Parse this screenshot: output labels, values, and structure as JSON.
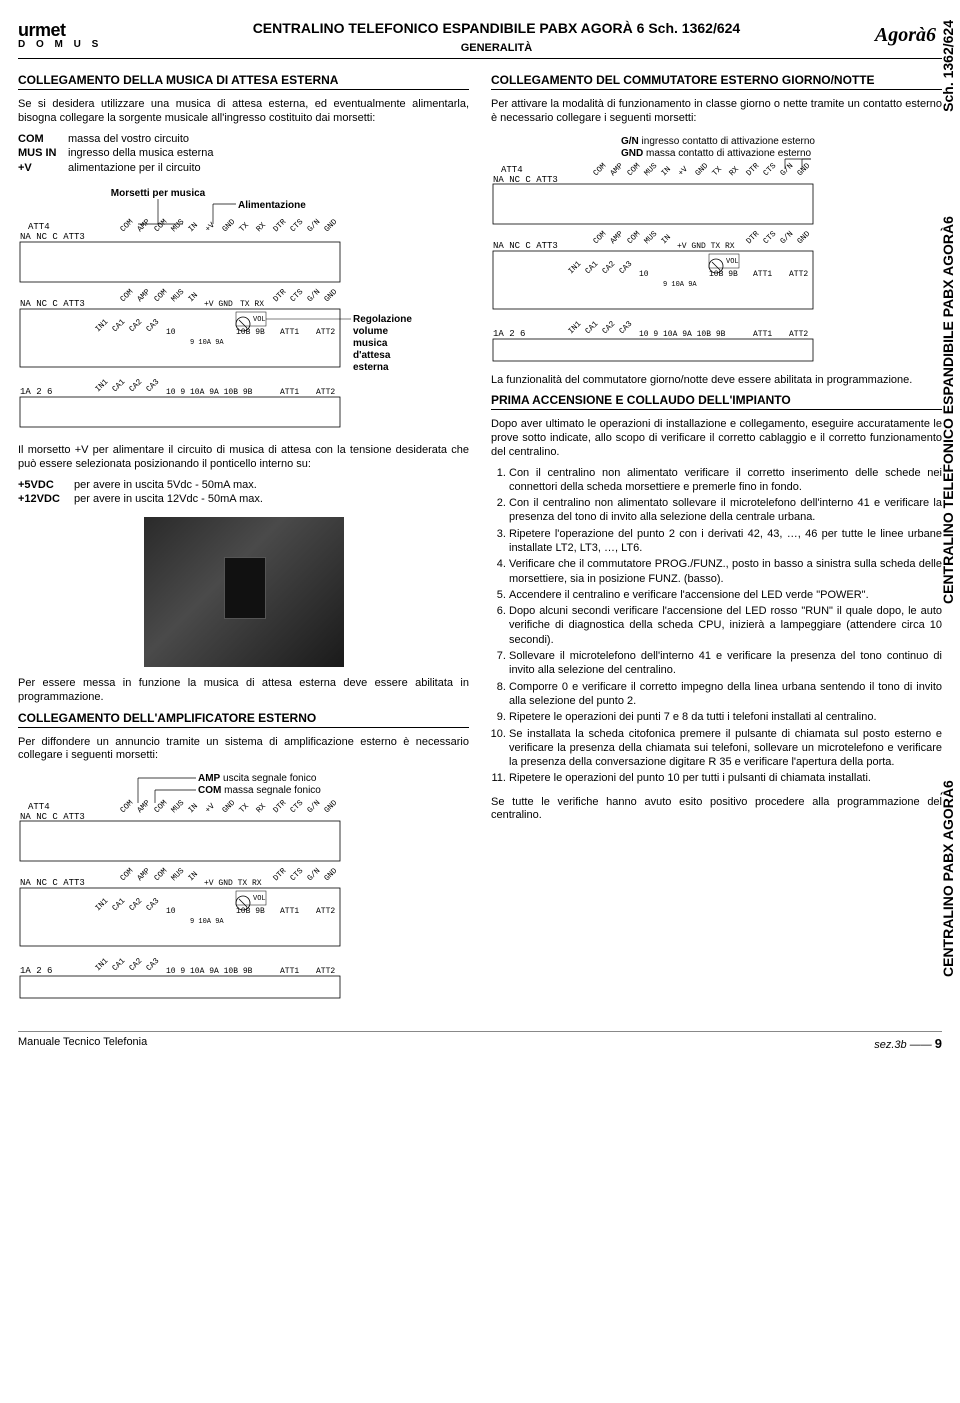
{
  "header": {
    "logo_brand": "urmet",
    "logo_sub": "D O M U S",
    "title_main": "CENTRALINO TELEFONICO ESPANDIBILE PABX AGORÀ 6 Sch. 1362/624",
    "title_sub": "GENERALITÀ",
    "model": "Agorà6"
  },
  "side": {
    "top": "Sch. 1362/624",
    "mid": "CENTRALINO TELEFONICO ESPANDIBILE PABX AGORÀ6",
    "bottom": "CENTRALINO PABX AGORÀ6"
  },
  "left": {
    "sec1_title": "COLLEGAMENTO DELLA MUSICA DI ATTESA ESTERNA",
    "sec1_intro": "Se si desidera utilizzare una musica di attesa esterna, ed eventualmente alimentarla, bisogna collegare la sorgente musicale all'ingresso costituito dai morsetti:",
    "sec1_terms": [
      {
        "k": "COM",
        "v": "massa del vostro circuito"
      },
      {
        "k": "MUS IN",
        "v": "ingresso della musica esterna"
      },
      {
        "k": "+V",
        "v": "alimentazione per il circuito"
      }
    ],
    "diag1_label1": "Morsetti per musica",
    "diag1_label2": "Alimentazione",
    "diag1_label3": "Regolazione volume musica d'attesa esterna",
    "sec1_body2": "Il morsetto +V per alimentare il circuito di musica di attesa con la tensione desiderata che può essere selezionata posizionando il ponticello interno su:",
    "sec1_opts": [
      {
        "k": "+5VDC",
        "v": "per avere in uscita   5Vdc - 50mA max."
      },
      {
        "k": "+12VDC",
        "v": "per avere in uscita   12Vdc - 50mA max."
      }
    ],
    "sec1_body3": "Per essere messa in funzione la musica di attesa esterna deve essere abilitata in programmazione.",
    "sec2_title": "COLLEGAMENTO DELL'AMPLIFICATORE ESTERNO",
    "sec2_intro": "Per diffondere un annuncio tramite un sistema di amplificazione esterno è necessario collegare i seguenti morsetti:",
    "diag2_label1": "AMP uscita segnale fonico",
    "diag2_label2": "COM massa segnale fonico"
  },
  "right": {
    "sec3_title": "COLLEGAMENTO DEL COMMUTATORE ESTERNO GIORNO/NOTTE",
    "sec3_intro": "Per attivare la modalità di funzionamento in classe giorno o nette tramite un contatto esterno è necessario collegare i seguenti morsetti:",
    "diag3_label1": "G/N ingresso contatto di attivazione esterno",
    "diag3_label2": "GND massa contatto di attivazione esterno",
    "sec3_body2": "La funzionalità del commutatore giorno/notte deve essere abilitata in programmazione.",
    "sec4_title": "PRIMA ACCENSIONE E COLLAUDO DELL'IMPIANTO",
    "sec4_intro": "Dopo aver ultimato le operazioni di installazione e collegamento, eseguire accuratamente le prove sotto indicate, allo scopo di verificare il corretto cablaggio e il corretto funzionamento del centralino.",
    "sec4_steps": [
      "Con il centralino non alimentato verificare il corretto inserimento delle schede nei connettori della scheda morsettiere e premerle fino in fondo.",
      "Con il centralino non alimentato sollevare il microtelefono dell'interno 41 e verificare la presenza del tono di invito alla selezione della centrale urbana.",
      "Ripetere l'operazione del punto 2 con i derivati 42, 43, …, 46 per tutte le linee urbane installate LT2, LT3, …, LT6.",
      "Verificare che il commutatore PROG./FUNZ., posto in basso a sinistra sulla scheda delle morsettiere, sia in posizione FUNZ. (basso).",
      "Accendere il centralino e verificare l'accensione del LED verde \"POWER\".",
      "Dopo alcuni secondi verificare l'accensione del LED rosso \"RUN\" il quale dopo, le auto verifiche di diagnostica della scheda CPU, inizierà a lampeggiare (attendere circa 10 secondi).",
      "Sollevare il microtelefono dell'interno 41 e verificare la presenza del tono continuo di invito alla selezione del centralino.",
      "Comporre 0 e verificare il corretto impegno della linea urbana sentendo il tono di invito alla selezione del punto 2.",
      "Ripetere le operazioni dei punti 7 e 8 da tutti i telefoni installati al centralino.",
      "Se installata la scheda citofonica premere il pulsante di chiamata sul posto esterno e verificare la presenza della chiamata sui telefoni, sollevare un microtelefono e verificare la presenza della conversazione digitare R 35 e verificare l'apertura della porta.",
      "Ripetere le operazioni del punto 10 per tutti i pulsanti di chiamata installati."
    ],
    "sec4_outro": "Se tutte le verifiche hanno avuto esito positivo procedere alla programmazione del centralino."
  },
  "terminals": {
    "row1_left": "ATT4\nNA NC  C   ATT3",
    "row1_labels": "COM AMP COM MUS IN +V GND TX RX DTR CTS G/N GND",
    "row2_left": "NA NC  C   ATT3\n ATT4\n1A  2   6",
    "row2_labels": "IN1 CA1 CA2 CA3 10        10B 9B   ATT1  ATT2",
    "row2_sub": "9 10A 9A",
    "row2b_labels": "COM AMP COM MUS IN +V GND TX RX DTR CTS G/N GND",
    "row3_left": "1A  2   6",
    "row3_labels": "IN1 CA1 CA2 CA3 10  9 10A 9A 10B 9B  ATT1  ATT2",
    "vol": "VOL"
  },
  "footer": {
    "left": "Manuale Tecnico Telefonia",
    "right_sec": "sez.3b",
    "right_page": "9"
  },
  "colors": {
    "text": "#000000",
    "bg": "#ffffff",
    "rule": "#000000"
  }
}
